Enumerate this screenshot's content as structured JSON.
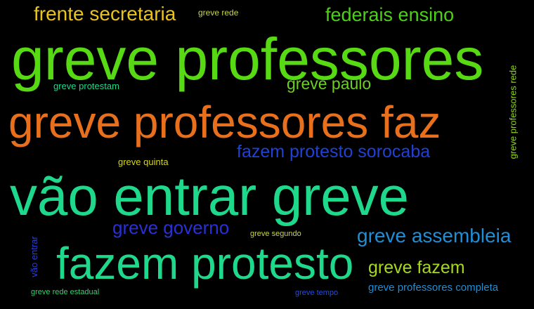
{
  "background_color": "#000000",
  "words": [
    {
      "text": "greve professores",
      "color": "#57d914"
    },
    {
      "text": "greve professores faz",
      "color": "#e8701c"
    },
    {
      "text": "vão entrar greve",
      "color": "#1ed98c"
    },
    {
      "text": "fazem protesto",
      "color": "#1ed98c"
    },
    {
      "text": "frente secretaria",
      "color": "#e8c41c"
    },
    {
      "text": "federais ensino",
      "color": "#4ecf1a"
    },
    {
      "text": "greve paulo",
      "color": "#6ad11e"
    },
    {
      "text": "fazem protesto sorocaba",
      "color": "#2140d4"
    },
    {
      "text": "greve governo",
      "color": "#2b2fd6"
    },
    {
      "text": "greve assembleia",
      "color": "#1e8fd6"
    },
    {
      "text": "greve fazem",
      "color": "#a6d91e"
    },
    {
      "text": "greve professores completa",
      "color": "#1e8fd6"
    },
    {
      "text": "greve rede",
      "color": "#c9d64a"
    },
    {
      "text": "greve protestam",
      "color": "#1ed98c"
    },
    {
      "text": "greve quinta",
      "color": "#d6d41e"
    },
    {
      "text": "greve segundo",
      "color": "#c9d64a"
    },
    {
      "text": "greve rede estadual",
      "color": "#2dd66a"
    },
    {
      "text": "greve tempo",
      "color": "#2b4cd6"
    },
    {
      "text": "vão entrar",
      "color": "#2b3fd6"
    },
    {
      "text": "greve professores rede",
      "color": "#8fd61e"
    }
  ]
}
